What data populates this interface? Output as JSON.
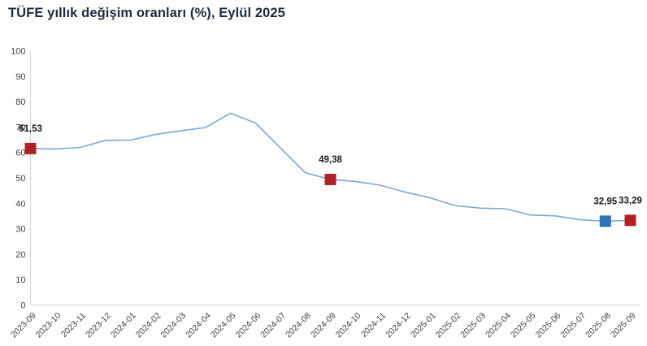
{
  "title": "TÜFE yıllık değişim oranları (%), Eylül 2025",
  "colors": {
    "title_text": "#1e2a3b",
    "line": "#7ba7d1",
    "marker_red": "#b02127",
    "marker_blue": "#2e74b5",
    "axis_line": "#d6d6d6",
    "tick_text": "#404040",
    "data_label_text": "#1a1a1a"
  },
  "chart_data": {
    "type": "line",
    "title": "TÜFE yıllık değişim oranları (%), Eylül 2025",
    "xlabel": "",
    "ylabel": "",
    "ylim": [
      0,
      100
    ],
    "yticks": [
      0,
      10,
      20,
      30,
      40,
      50,
      60,
      70,
      80,
      90,
      100
    ],
    "grid": false,
    "legend": "none",
    "x_tick_rotation": -45,
    "categories": [
      "2023-09",
      "2023-10",
      "2023-11",
      "2023-12",
      "2024-01",
      "2024-02",
      "2024-03",
      "2024-04",
      "2024-05",
      "2024-06",
      "2024-07",
      "2024-08",
      "2024-09",
      "2024-10",
      "2024-11",
      "2024-12",
      "2025-01",
      "2025-02",
      "2025-03",
      "2025-04",
      "2025-05",
      "2025-06",
      "2025-07",
      "2025-08",
      "2025-09"
    ],
    "values": [
      61.53,
      61.36,
      61.98,
      64.77,
      64.86,
      67.07,
      68.5,
      69.8,
      75.45,
      71.6,
      61.78,
      51.97,
      49.38,
      48.58,
      47.09,
      44.38,
      42.12,
      39.05,
      38.1,
      37.86,
      35.41,
      35.05,
      33.52,
      32.95,
      33.29
    ],
    "highlighted_points": [
      {
        "index": 0,
        "category": "2023-09",
        "value": 61.53,
        "label": "61,53",
        "marker_color": "#b02127"
      },
      {
        "index": 12,
        "category": "2024-09",
        "value": 49.38,
        "label": "49,38",
        "marker_color": "#b02127"
      },
      {
        "index": 23,
        "category": "2025-08",
        "value": 32.95,
        "label": "32,95",
        "marker_color": "#2e74b5"
      },
      {
        "index": 24,
        "category": "2025-09",
        "value": 33.29,
        "label": "33,29",
        "marker_color": "#b02127"
      }
    ]
  }
}
